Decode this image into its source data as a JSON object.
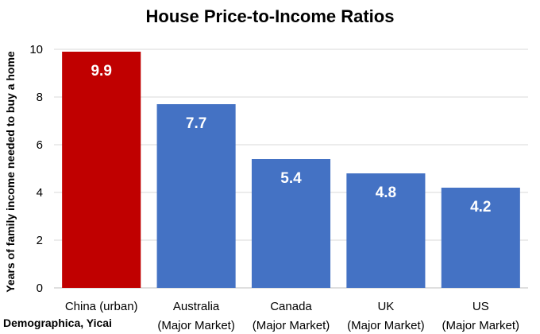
{
  "chart_data": {
    "type": "bar",
    "title": "House Price-to-Income Ratios",
    "ylabel": "Years of family income needed to buy a home",
    "xlabel": "",
    "categories": [
      [
        "China (urban)"
      ],
      [
        "Australia",
        "(Major Market)"
      ],
      [
        "Canada",
        "(Major Market)"
      ],
      [
        "UK",
        "(Major Market)"
      ],
      [
        "US",
        "(Major Market)"
      ]
    ],
    "values": [
      9.9,
      7.7,
      5.4,
      4.8,
      4.2
    ],
    "data_labels": [
      "9.9",
      "7.7",
      "5.4",
      "4.8",
      "4.2"
    ],
    "ylim": [
      0,
      10
    ],
    "yticks": [
      0,
      2,
      4,
      6,
      8,
      10
    ],
    "grid": true,
    "colors": [
      "#C00000",
      "#4472C4",
      "#4472C4",
      "#4472C4",
      "#4472C4"
    ],
    "gridline_color": "#D9D9D9",
    "axis_color": "#BFBFBF"
  },
  "source": "Demographica, Yicai"
}
